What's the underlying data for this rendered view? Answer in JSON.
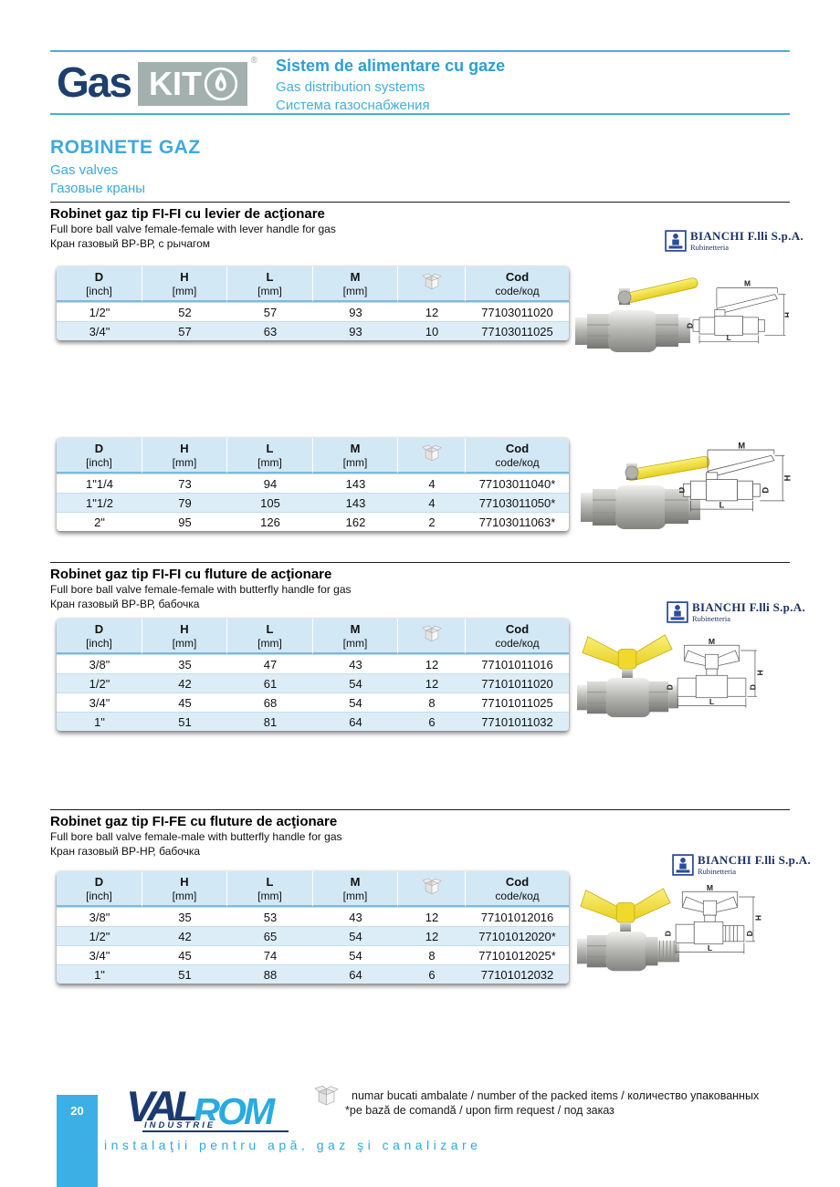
{
  "header": {
    "logo_gas": "Gas",
    "logo_kit": "KIT",
    "registered_mark": "®",
    "title_ro": "Sistem de alimentare cu gaze",
    "title_en": "Gas distribution systems",
    "title_ru": "Система газоснабжения"
  },
  "page_heading": {
    "title": "ROBINETE GAZ",
    "subtitle_en": "Gas valves",
    "subtitle_ru": "Газовые краны"
  },
  "table_columns": [
    {
      "top": "D",
      "bottom": "[inch]"
    },
    {
      "top": "H",
      "bottom": "[mm]"
    },
    {
      "top": "L",
      "bottom": "[mm]"
    },
    {
      "top": "M",
      "bottom": "[mm]"
    },
    {
      "icon": "package-icon",
      "top": "",
      "bottom": ""
    },
    {
      "top": "Cod",
      "bottom": "code/код"
    }
  ],
  "sections": [
    {
      "title": "Robinet gaz tip FI-FI cu levier de acţionare",
      "subtitle_en": "Full bore ball valve female-female with lever handle for gas",
      "subtitle_ru": "Кран газовый ВР-ВР, с рычагом",
      "tables": [
        {
          "rows": [
            [
              "1/2\"",
              "52",
              "57",
              "93",
              "12",
              "77103011020"
            ],
            [
              "3/4\"",
              "57",
              "63",
              "93",
              "10",
              "77103011025"
            ]
          ]
        },
        {
          "rows": [
            [
              "1\"1/4",
              "73",
              "94",
              "143",
              "4",
              "77103011040*"
            ],
            [
              "1\"1/2",
              "79",
              "105",
              "143",
              "4",
              "77103011050*"
            ],
            [
              "2\"",
              "95",
              "126",
              "162",
              "2",
              "77103011063*"
            ]
          ]
        }
      ]
    },
    {
      "title": "Robinet gaz tip FI-FI cu fluture de acţionare",
      "subtitle_en": "Full bore ball valve female-female with butterfly handle for gas",
      "subtitle_ru": "Кран газовый ВР-ВР, бабочка",
      "tables": [
        {
          "rows": [
            [
              "3/8\"",
              "35",
              "47",
              "43",
              "12",
              "77101011016"
            ],
            [
              "1/2\"",
              "42",
              "61",
              "54",
              "12",
              "77101011020"
            ],
            [
              "3/4\"",
              "45",
              "68",
              "54",
              "8",
              "77101011025"
            ],
            [
              "1\"",
              "51",
              "81",
              "64",
              "6",
              "77101011032"
            ]
          ]
        }
      ]
    },
    {
      "title": "Robinet gaz tip FI-FE cu fluture de acţionare",
      "subtitle_en": "Full bore ball valve female-male with butterfly handle for gas",
      "subtitle_ru": "Кран газовый ВР-НР, бабочка",
      "tables": [
        {
          "rows": [
            [
              "3/8\"",
              "35",
              "53",
              "43",
              "12",
              "77101012016"
            ],
            [
              "1/2\"",
              "42",
              "65",
              "54",
              "12",
              "77101012020*"
            ],
            [
              "3/4\"",
              "45",
              "74",
              "54",
              "8",
              "77101012025*"
            ],
            [
              "1\"",
              "51",
              "88",
              "64",
              "6",
              "77101012032"
            ]
          ]
        }
      ]
    }
  ],
  "brand_badge": {
    "name": "BIANCHI F.lli S.p.A.",
    "subname": "Rubinetteria"
  },
  "figure_dim_labels": {
    "m": "M",
    "h": "H",
    "l": "L",
    "d": "D"
  },
  "footer": {
    "note_packed": "numar bucati ambalate / number of the packed items / количество упакованных",
    "note_request": "*pe bază de comandă / upon firm request / под заказ",
    "valrom_val": "VAL",
    "valrom_rom": "ROM",
    "valrom_industrie": "INDUSTRIE",
    "valrom_tagline": "instalaţii pentru apă, gaz şi canalizare",
    "page_number": "20"
  },
  "colors": {
    "accent_blue": "#3fa9dc",
    "header_title_blue": "#2d9fd6",
    "navy": "#1d3f6e",
    "table_header_bg": "#d3e8f5",
    "table_row_alt_bg": "#dcedf8",
    "table_header_rule": "#7cbade",
    "page_tab_bg": "#3cb0e5",
    "valrom_cyan": "#29abe2",
    "handle_yellow": "#f2e13c",
    "logo_box_gray": "#a2b1ae"
  }
}
